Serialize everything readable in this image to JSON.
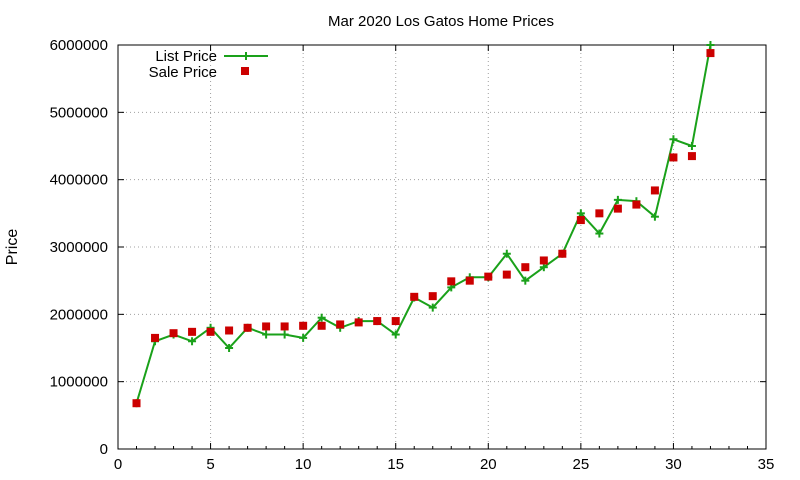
{
  "chart_data": {
    "type": "line",
    "title": "Mar 2020 Los Gatos Home Prices",
    "xlabel": "",
    "ylabel": "Price",
    "xlim": [
      0,
      35
    ],
    "ylim": [
      0,
      6000000
    ],
    "xticks": [
      0,
      5,
      10,
      15,
      20,
      25,
      30,
      35
    ],
    "yticks": [
      0,
      1000000,
      2000000,
      3000000,
      4000000,
      5000000,
      6000000
    ],
    "grid": true,
    "legend_position": "top-left",
    "series": [
      {
        "name": "List Price",
        "style": "line-with-plus-markers",
        "color": "#1aa11a",
        "points": [
          [
            1,
            680000
          ],
          [
            2,
            1600000
          ],
          [
            3,
            1700000
          ],
          [
            4,
            1600000
          ],
          [
            5,
            1800000
          ],
          [
            6,
            1500000
          ],
          [
            7,
            1800000
          ],
          [
            8,
            1700000
          ],
          [
            9,
            1700000
          ],
          [
            10,
            1650000
          ],
          [
            11,
            1950000
          ],
          [
            12,
            1800000
          ],
          [
            13,
            1900000
          ],
          [
            14,
            1900000
          ],
          [
            15,
            1700000
          ],
          [
            16,
            2250000
          ],
          [
            17,
            2100000
          ],
          [
            18,
            2400000
          ],
          [
            19,
            2550000
          ],
          [
            20,
            2550000
          ],
          [
            21,
            2900000
          ],
          [
            22,
            2500000
          ],
          [
            23,
            2700000
          ],
          [
            24,
            2900000
          ],
          [
            25,
            3500000
          ],
          [
            26,
            3200000
          ],
          [
            27,
            3700000
          ],
          [
            28,
            3680000
          ],
          [
            29,
            3450000
          ],
          [
            30,
            4600000
          ],
          [
            31,
            4500000
          ],
          [
            32,
            6000000
          ]
        ]
      },
      {
        "name": "Sale Price",
        "style": "square-markers",
        "color": "#cc0000",
        "points": [
          [
            1,
            680000
          ],
          [
            2,
            1650000
          ],
          [
            3,
            1720000
          ],
          [
            4,
            1740000
          ],
          [
            5,
            1740000
          ],
          [
            6,
            1760000
          ],
          [
            7,
            1800000
          ],
          [
            8,
            1820000
          ],
          [
            9,
            1820000
          ],
          [
            10,
            1830000
          ],
          [
            11,
            1830000
          ],
          [
            12,
            1850000
          ],
          [
            13,
            1880000
          ],
          [
            14,
            1900000
          ],
          [
            15,
            1900000
          ],
          [
            16,
            2260000
          ],
          [
            17,
            2270000
          ],
          [
            18,
            2490000
          ],
          [
            19,
            2500000
          ],
          [
            20,
            2560000
          ],
          [
            21,
            2590000
          ],
          [
            22,
            2700000
          ],
          [
            23,
            2800000
          ],
          [
            24,
            2900000
          ],
          [
            25,
            3400000
          ],
          [
            26,
            3500000
          ],
          [
            27,
            3570000
          ],
          [
            28,
            3630000
          ],
          [
            29,
            3840000
          ],
          [
            30,
            4330000
          ],
          [
            31,
            4350000
          ],
          [
            32,
            5880000
          ]
        ]
      }
    ]
  }
}
